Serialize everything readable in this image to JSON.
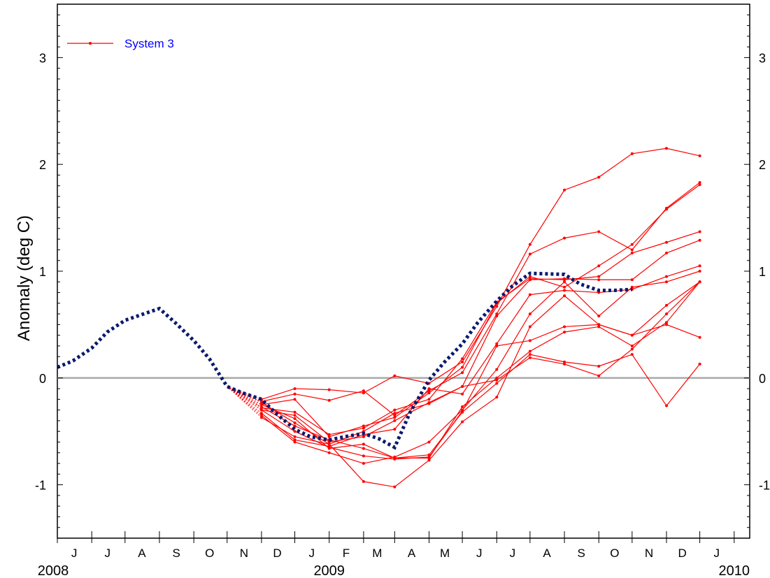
{
  "chart_data": {
    "type": "line",
    "title": "",
    "xlabel": "",
    "ylabel": "Anomaly (deg C)",
    "ylim": [
      -1.5,
      3.5
    ],
    "y_ticks": [
      -1,
      0,
      1,
      2,
      3
    ],
    "y_tick_labels_left": [
      "-1",
      "0",
      "1",
      "2",
      "3"
    ],
    "y_tick_labels_right": [
      "-1",
      "0",
      "1",
      "2",
      "3"
    ],
    "xlim": [
      "2008-05-01",
      "2010-01-15"
    ],
    "month_labels": [
      {
        "date": "2008-06-01",
        "label": "J"
      },
      {
        "date": "2008-07-01",
        "label": "J"
      },
      {
        "date": "2008-08-01",
        "label": "A"
      },
      {
        "date": "2008-09-01",
        "label": "S"
      },
      {
        "date": "2008-10-01",
        "label": "O"
      },
      {
        "date": "2008-11-01",
        "label": "N"
      },
      {
        "date": "2008-12-01",
        "label": "D"
      },
      {
        "date": "2009-01-01",
        "label": "J"
      },
      {
        "date": "2009-02-01",
        "label": "F"
      },
      {
        "date": "2009-03-01",
        "label": "M"
      },
      {
        "date": "2009-04-01",
        "label": "A"
      },
      {
        "date": "2009-05-01",
        "label": "M"
      },
      {
        "date": "2009-06-01",
        "label": "J"
      },
      {
        "date": "2009-07-01",
        "label": "J"
      },
      {
        "date": "2009-08-01",
        "label": "A"
      },
      {
        "date": "2009-09-01",
        "label": "S"
      },
      {
        "date": "2009-10-01",
        "label": "O"
      },
      {
        "date": "2009-11-01",
        "label": "N"
      },
      {
        "date": "2009-12-01",
        "label": "D"
      },
      {
        "date": "2010-01-01",
        "label": "J"
      }
    ],
    "year_labels": [
      {
        "date": "2008-05-01",
        "label": "2008"
      },
      {
        "date": "2009-01-01",
        "label": "2009"
      },
      {
        "date": "2010-01-01",
        "label": "2010"
      }
    ],
    "zero_line": true,
    "grid": false,
    "legend": {
      "position": "top-left",
      "entries": [
        {
          "label": "System 3",
          "color": "#ff0000",
          "text_color": "#0000ff"
        }
      ]
    },
    "observed": {
      "style": "dotted",
      "color": "#0a1a6e",
      "points": [
        {
          "x": "2008-05-01",
          "y": 0.1
        },
        {
          "x": "2008-05-15",
          "y": 0.16
        },
        {
          "x": "2008-06-01",
          "y": 0.28
        },
        {
          "x": "2008-06-15",
          "y": 0.43
        },
        {
          "x": "2008-07-01",
          "y": 0.54
        },
        {
          "x": "2008-07-15",
          "y": 0.59
        },
        {
          "x": "2008-08-01",
          "y": 0.65
        },
        {
          "x": "2008-08-15",
          "y": 0.52
        },
        {
          "x": "2008-09-01",
          "y": 0.35
        },
        {
          "x": "2008-09-15",
          "y": 0.18
        },
        {
          "x": "2008-10-01",
          "y": -0.08
        },
        {
          "x": "2008-10-15",
          "y": -0.14
        },
        {
          "x": "2008-11-01",
          "y": -0.2
        },
        {
          "x": "2008-11-15",
          "y": -0.34
        },
        {
          "x": "2008-12-01",
          "y": -0.48
        },
        {
          "x": "2008-12-15",
          "y": -0.55
        },
        {
          "x": "2009-01-01",
          "y": -0.58
        },
        {
          "x": "2009-01-15",
          "y": -0.55
        },
        {
          "x": "2009-02-01",
          "y": -0.52
        },
        {
          "x": "2009-02-15",
          "y": -0.57
        },
        {
          "x": "2009-03-01",
          "y": -0.65
        },
        {
          "x": "2009-03-15",
          "y": -0.32
        },
        {
          "x": "2009-04-01",
          "y": -0.02
        },
        {
          "x": "2009-04-15",
          "y": 0.15
        },
        {
          "x": "2009-05-01",
          "y": 0.32
        },
        {
          "x": "2009-05-15",
          "y": 0.52
        },
        {
          "x": "2009-06-01",
          "y": 0.72
        },
        {
          "x": "2009-06-15",
          "y": 0.86
        },
        {
          "x": "2009-07-01",
          "y": 0.98
        },
        {
          "x": "2009-08-01",
          "y": 0.97
        },
        {
          "x": "2009-08-15",
          "y": 0.88
        },
        {
          "x": "2009-09-01",
          "y": 0.82
        },
        {
          "x": "2009-09-15",
          "y": 0.82
        },
        {
          "x": "2009-10-01",
          "y": 0.83
        }
      ]
    },
    "forecast_months": [
      "2008-11-01",
      "2008-12-01",
      "2009-01-01",
      "2009-02-01",
      "2009-03-01",
      "2009-04-01",
      "2009-05-01",
      "2009-06-01",
      "2009-07-01",
      "2009-08-01",
      "2009-09-01",
      "2009-10-01",
      "2009-11-01",
      "2009-12-01"
    ],
    "series": [
      {
        "name": "",
        "values": [
          -0.2,
          -0.1,
          -0.11,
          -0.14,
          0.02,
          -0.05,
          0.15,
          0.67,
          1.25,
          1.76,
          1.88,
          2.1,
          2.15,
          2.08
        ]
      },
      {
        "name": "",
        "values": [
          -0.22,
          -0.15,
          -0.21,
          -0.12,
          -0.35,
          -0.12,
          0.05,
          0.6,
          1.16,
          1.31,
          1.37,
          1.2,
          1.59,
          1.83
        ]
      },
      {
        "name": "",
        "values": [
          -0.25,
          -0.2,
          -0.55,
          -0.45,
          -0.37,
          -0.14,
          0.1,
          0.7,
          0.95,
          0.85,
          1.05,
          1.25,
          1.58,
          1.81
        ]
      },
      {
        "name": "",
        "values": [
          -0.28,
          -0.32,
          -0.53,
          -0.47,
          -0.3,
          -0.2,
          0.18,
          0.71,
          0.93,
          0.92,
          0.95,
          1.17,
          1.27,
          1.37
        ]
      },
      {
        "name": "",
        "values": [
          -0.3,
          -0.35,
          -0.6,
          -0.55,
          -0.4,
          -0.23,
          -0.08,
          0.58,
          0.92,
          0.93,
          0.92,
          0.92,
          1.17,
          1.29
        ]
      },
      {
        "name": "",
        "values": [
          -0.33,
          -0.58,
          -0.64,
          -0.53,
          -0.48,
          -0.1,
          -0.15,
          0.32,
          0.78,
          0.82,
          0.8,
          0.83,
          0.95,
          1.05
        ]
      },
      {
        "name": "",
        "values": [
          -0.35,
          -0.6,
          -0.7,
          -0.8,
          -0.74,
          -0.6,
          -0.3,
          0.08,
          0.6,
          0.9,
          0.58,
          0.85,
          0.9,
          1.0
        ]
      },
      {
        "name": "",
        "values": [
          -0.37,
          -0.55,
          -0.62,
          -0.97,
          -1.02,
          -0.77,
          -0.41,
          -0.18,
          0.48,
          0.77,
          0.5,
          0.4,
          0.5,
          0.38
        ]
      },
      {
        "name": "",
        "values": [
          -0.3,
          -0.5,
          -0.65,
          -0.73,
          -0.76,
          -0.74,
          -0.31,
          0.3,
          0.35,
          0.48,
          0.5,
          0.4,
          0.68,
          0.9
        ]
      },
      {
        "name": "",
        "values": [
          -0.27,
          -0.45,
          -0.58,
          -0.66,
          -0.75,
          -0.75,
          -0.27,
          0.0,
          0.25,
          0.43,
          0.48,
          0.3,
          0.52,
          0.9
        ]
      },
      {
        "name": "",
        "values": [
          -0.25,
          -0.38,
          -0.66,
          -0.62,
          -0.75,
          -0.72,
          -0.32,
          -0.05,
          0.22,
          0.15,
          0.11,
          0.22,
          -0.26,
          0.13
        ]
      },
      {
        "name": "",
        "values": [
          -0.23,
          -0.42,
          -0.62,
          -0.5,
          -0.33,
          -0.24,
          -0.08,
          -0.02,
          0.19,
          0.13,
          0.02,
          0.27,
          0.6,
          0.9
        ]
      }
    ]
  }
}
